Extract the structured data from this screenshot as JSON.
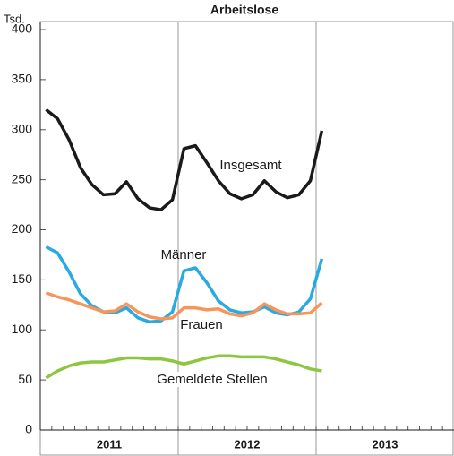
{
  "chart_data": {
    "type": "line",
    "title": "Arbeitslose",
    "ylabel": "Tsd.",
    "categories": [
      null,
      null,
      null,
      null,
      null,
      null,
      null,
      null,
      null,
      null,
      null,
      null,
      null,
      null,
      null,
      null,
      null,
      null,
      null,
      null,
      null,
      null,
      null,
      null,
      null,
      null,
      null,
      null,
      null,
      null,
      null,
      null,
      null,
      null,
      null,
      null
    ],
    "year_labels": [
      "2011",
      "2012",
      "2013"
    ],
    "ylim": [
      0,
      400
    ],
    "yticks": [
      0,
      50,
      100,
      150,
      200,
      250,
      300,
      350,
      400
    ],
    "series": [
      {
        "name": "Insgesamt",
        "color": "#1a1a1a",
        "values": [
          320,
          311,
          290,
          262,
          245,
          235,
          236,
          248,
          231,
          222,
          220,
          230,
          281,
          284,
          267,
          249,
          236,
          231,
          235,
          249,
          238,
          232,
          235,
          249,
          299,
          null,
          null,
          null,
          null,
          null,
          null,
          null,
          null,
          null,
          null,
          null
        ]
      },
      {
        "name": "Männer",
        "color": "#29aae1",
        "values": [
          183,
          177,
          158,
          136,
          124,
          118,
          117,
          122,
          112,
          108,
          109,
          118,
          159,
          162,
          147,
          129,
          120,
          117,
          118,
          123,
          117,
          115,
          118,
          131,
          171,
          null,
          null,
          null,
          null,
          null,
          null,
          null,
          null,
          null,
          null,
          null
        ]
      },
      {
        "name": "Frauen",
        "color": "#f7955b",
        "values": [
          137,
          133,
          130,
          126,
          122,
          118,
          119,
          126,
          118,
          113,
          111,
          112,
          122,
          122,
          120,
          121,
          116,
          114,
          117,
          126,
          120,
          116,
          116,
          117,
          127,
          null,
          null,
          null,
          null,
          null,
          null,
          null,
          null,
          null,
          null,
          null
        ]
      },
      {
        "name": "Gemeldete Stellen",
        "color": "#8dc63f",
        "values": [
          52,
          59,
          64,
          67,
          68,
          68,
          70,
          72,
          72,
          71,
          71,
          69,
          66,
          69,
          72,
          74,
          74,
          73,
          73,
          73,
          71,
          68,
          65,
          61,
          59,
          null,
          null,
          null,
          null,
          null,
          null,
          null,
          null,
          null,
          null,
          null
        ]
      }
    ]
  }
}
